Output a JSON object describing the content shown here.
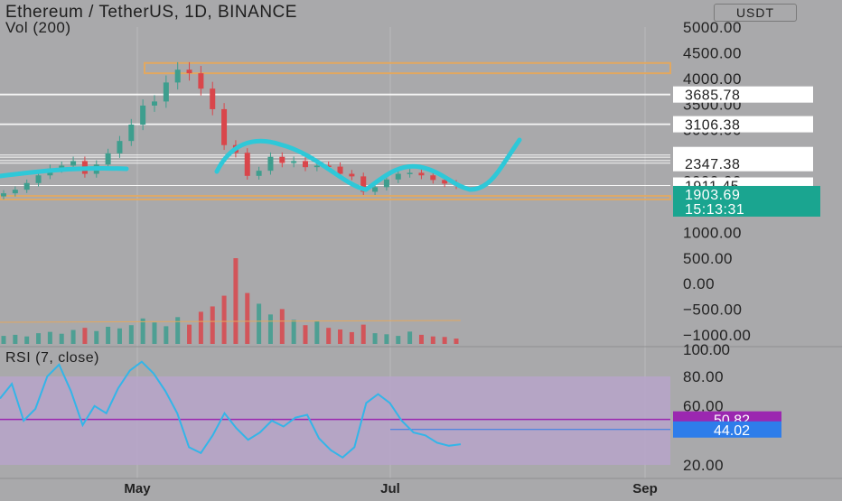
{
  "header": {
    "title": "Ethereum / TetherUS, 1D, BINANCE",
    "volume_label": "Vol (200)",
    "currency": "USDT"
  },
  "rsi": {
    "label": "RSI (7, close)"
  },
  "colors": {
    "background": "#a9a9ab",
    "up_candle": "#3e9e8e",
    "down_candle": "#d9464b",
    "annotation": "#2ec8d8",
    "level_band": "#e2a860",
    "rsi_line": "#33b5e8",
    "rsi_band": "#b7a4c9",
    "rsi_mid": "#9b27b0",
    "price_tag": "#1aa590",
    "rsi_tag": "#9b27b0",
    "rsi_tag2": "#2e7dea"
  },
  "chart_data": [
    {
      "type": "candlestick",
      "xaxis": {
        "ticks": [
          "May",
          "Jul",
          "Sep"
        ]
      },
      "yaxis": {
        "ticks": [
          "5000.00",
          "4500.00",
          "4000.00",
          "3500.00",
          "3000.00",
          "2500.00",
          "2000.00",
          "1500.00",
          "1000.00",
          "500.00",
          "0.00",
          "−500.00",
          "−1000.00"
        ],
        "tick_values": [
          5000,
          4500,
          4000,
          3500,
          3000,
          2500,
          2000,
          1500,
          1000,
          500,
          0,
          -500,
          -1000
        ]
      },
      "last_price": "1903.69",
      "countdown": "15:13:31",
      "price_levels": [
        "3685.78",
        "3106.38",
        "2506.59",
        "2464.52",
        "2398.04",
        "2347.38",
        "1911.45"
      ],
      "level_values": [
        3685.78,
        3106.38,
        2506.59,
        2464.52,
        2398.04,
        2347.38,
        1911.45
      ],
      "closes": [
        1760,
        1830,
        1960,
        2110,
        2240,
        2300,
        2390,
        2140,
        2320,
        2540,
        2780,
        3100,
        3470,
        3550,
        3920,
        4170,
        4100,
        3800,
        3400,
        2700,
        2550,
        2100,
        2200,
        2470,
        2350,
        2390,
        2270,
        2300,
        2280,
        2140,
        2090,
        1790,
        1880,
        2030,
        2140,
        2160,
        2110,
        2020,
        1950,
        1910
      ],
      "resistance_band": [
        4100,
        4300
      ],
      "support_band": [
        1640,
        1710
      ]
    },
    {
      "type": "bar",
      "name": "Vol (200)",
      "values": [
        30,
        34,
        28,
        40,
        45,
        38,
        52,
        60,
        48,
        64,
        58,
        70,
        95,
        80,
        66,
        100,
        72,
        120,
        140,
        180,
        320,
        190,
        150,
        110,
        130,
        90,
        70,
        84,
        60,
        54,
        44,
        72,
        40,
        36,
        30,
        46,
        34,
        28,
        26,
        20
      ],
      "ylim": [
        0,
        320
      ]
    },
    {
      "type": "line",
      "name": "RSI (7, close)",
      "yaxis": {
        "ticks": [
          "80.00",
          "60.00",
          "20.00"
        ],
        "tick_values": [
          80,
          60,
          20
        ]
      },
      "values": [
        65,
        75,
        50,
        58,
        80,
        88,
        70,
        47,
        60,
        55,
        72,
        84,
        90,
        82,
        70,
        55,
        32,
        28,
        40,
        55,
        45,
        37,
        42,
        50,
        46,
        52,
        54,
        38,
        30,
        25,
        32,
        62,
        68,
        62,
        50,
        42,
        40,
        35,
        33,
        34
      ],
      "band": [
        20,
        80
      ],
      "mid": 50.82,
      "value_tag": "50.82",
      "value_tag2": "44.02",
      "ylim": [
        0,
        100
      ]
    }
  ]
}
